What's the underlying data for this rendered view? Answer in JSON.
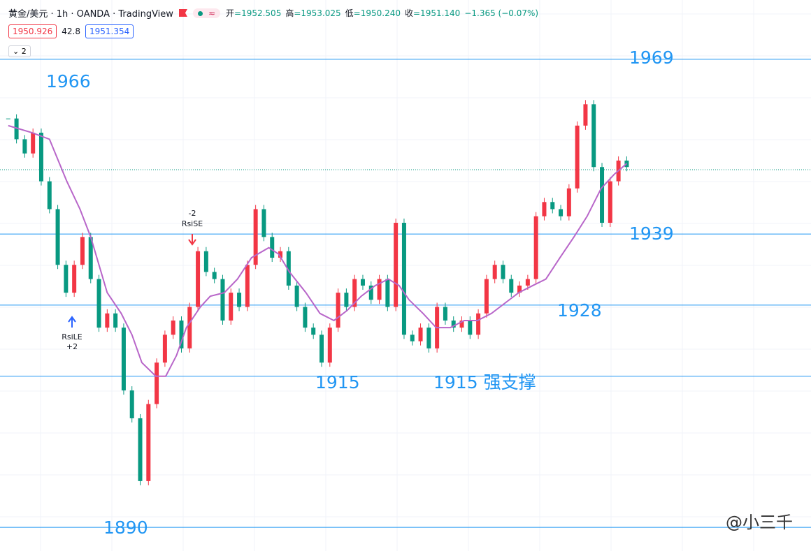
{
  "header": {
    "symbol": "黄金/美元 · 1h · OANDA · TradingView",
    "icon": "≈",
    "ohlc": [
      {
        "label": "开",
        "value": "=1952.505"
      },
      {
        "label": "高",
        "value": "=1953.025"
      },
      {
        "label": "低",
        "value": "=1950.240"
      },
      {
        "label": "收",
        "value": "=1951.140"
      }
    ],
    "change": "−1.365 (−0.07%)",
    "sell": "1950.926",
    "spread": "42.8",
    "buy": "1951.354",
    "layers": "2"
  },
  "chart_data": {
    "type": "candlestick",
    "close": [
      1959.0,
      1955.5,
      1953.1,
      1956.6,
      1948.4,
      1943.7,
      1934.3,
      1929.6,
      1934.3,
      1939.0,
      1931.9,
      1923.7,
      1926.1,
      1923.7,
      1913.1,
      1908.4,
      1897.8,
      1910.8,
      1917.8,
      1922.5,
      1924.9,
      1920.2,
      1927.2,
      1936.6,
      1933.1,
      1931.9,
      1924.9,
      1929.6,
      1927.2,
      1934.3,
      1943.7,
      1939.0,
      1935.5,
      1936.6,
      1930.8,
      1927.2,
      1923.7,
      1922.5,
      1917.8,
      1923.7,
      1929.6,
      1927.2,
      1931.9,
      1930.8,
      1928.4,
      1931.9,
      1927.2,
      1941.4,
      1922.5,
      1921.4,
      1923.7,
      1920.2,
      1927.2,
      1924.9,
      1923.7,
      1924.9,
      1922.5,
      1926.1,
      1931.9,
      1934.3,
      1931.9,
      1929.6,
      1930.8,
      1931.9,
      1942.5,
      1944.9,
      1943.7,
      1942.5,
      1947.2,
      1957.8,
      1961.4,
      1950.8,
      1941.4,
      1948.4,
      1951.9,
      1950.8
    ],
    "up_color": "#f23645",
    "down_color": "#089981",
    "ma": {
      "color": "#b866c9",
      "x": [
        0,
        2.9,
        5,
        7.1,
        8.7,
        10,
        12,
        13.7,
        15,
        16.2,
        17.9,
        19.1,
        20.4,
        21.6,
        23.3,
        24.5,
        26.2,
        27.8,
        29.5,
        31.6,
        32.8,
        34.1,
        36.1,
        37.8,
        39.5,
        41.1,
        42.8,
        44.5,
        46.1,
        47.4,
        48.6,
        50.3,
        51.9,
        53.6,
        55.3,
        56.9,
        58.6,
        60.2,
        61.9,
        63.6,
        65.2,
        66.9,
        68.6,
        70.2,
        71.9,
        73.5,
        75
      ],
      "values": [
        1957.8,
        1956.6,
        1955.5,
        1948.4,
        1943.7,
        1939.0,
        1929.6,
        1926.1,
        1922.5,
        1917.8,
        1915.5,
        1915.5,
        1919.0,
        1923.7,
        1927.2,
        1929.0,
        1929.6,
        1931.9,
        1935.5,
        1937.2,
        1936.1,
        1933.1,
        1929.6,
        1926.1,
        1924.9,
        1926.6,
        1929.0,
        1930.8,
        1931.9,
        1930.8,
        1928.4,
        1926.1,
        1923.7,
        1923.7,
        1924.9,
        1924.9,
        1926.1,
        1927.8,
        1929.6,
        1930.8,
        1931.9,
        1935.5,
        1939.0,
        1942.5,
        1947.2,
        1949.6,
        1951.4
      ]
    },
    "xlim": [
      -1,
      77
    ],
    "ylim": [
      1886,
      1979
    ],
    "levels": {
      "color": "#2196f3",
      "values": [
        1969,
        1939.5,
        1927.5,
        1915.5,
        1890
      ]
    },
    "annotations": [
      "1966",
      "1969",
      "1939",
      "1928",
      "1915",
      "1915 强支撑",
      "1890"
    ],
    "signals": [
      {
        "count": "-2",
        "name": "RsiSE"
      },
      {
        "name": "RsiLE",
        "count": "+2"
      }
    ]
  },
  "watermark": "@小三千"
}
